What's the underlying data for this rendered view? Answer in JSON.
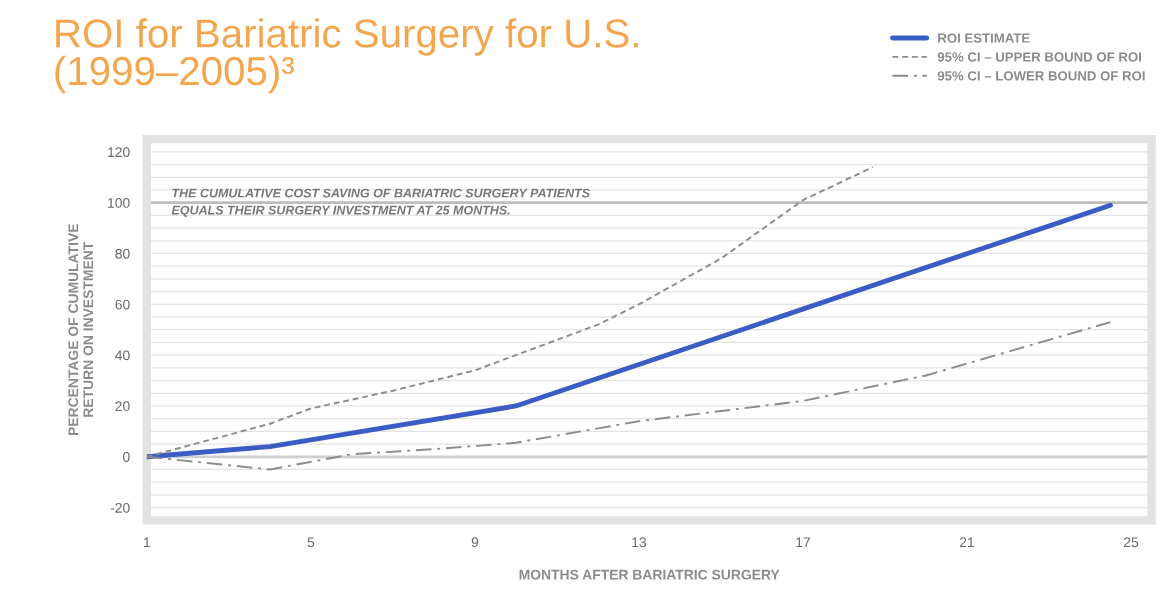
{
  "chart_data": {
    "type": "line",
    "title": "ROI for Bariatric Surgery for U.S.\n(1999–2005)³",
    "xlabel": "MONTHS AFTER BARIATRIC SURGERY",
    "ylabel": "PERCENTAGE OF CUMULATIVE\nRETURN ON INVESTMENT",
    "xlim": [
      1,
      25.5
    ],
    "xticks": [
      1,
      5,
      9,
      13,
      17,
      21,
      25
    ],
    "ylim": [
      -25,
      125
    ],
    "yticks": [
      {
        "value": -20,
        "label": "-20"
      },
      {
        "value": -15,
        "label": null
      },
      {
        "value": -10,
        "label": null
      },
      {
        "value": -5,
        "label": null
      },
      0,
      {
        "value": 5,
        "label": null
      },
      {
        "value": 10,
        "label": null
      },
      {
        "value": 15,
        "label": null
      },
      20,
      {
        "value": 25,
        "label": null
      },
      {
        "value": 30,
        "label": null
      },
      {
        "value": 35,
        "label": null
      },
      40,
      {
        "value": 45,
        "label": null
      },
      {
        "value": 50,
        "label": null
      },
      {
        "value": 55,
        "label": null
      },
      60,
      {
        "value": 65,
        "label": null
      },
      {
        "value": 70,
        "label": null
      },
      {
        "value": 75,
        "label": null
      },
      80,
      {
        "value": 85,
        "label": null
      },
      {
        "value": 90,
        "label": null
      },
      {
        "value": 95,
        "label": null
      },
      100,
      {
        "value": 105,
        "label": null
      },
      {
        "value": 110,
        "label": null
      },
      {
        "value": 115,
        "label": null
      },
      120
    ],
    "grid": "y",
    "legend": "top right",
    "ref_lines": [
      {
        "axis": "y",
        "value": 0,
        "color": "#cfcfcf"
      },
      {
        "axis": "y",
        "value": 100,
        "color": "#bdbdbd",
        "label": "THE CUMULATIVE COST SAVING OF BARIATRIC SURGERY PATIENTS\nEQUALS THEIR SURGERY INVESTMENT AT 25 MONTHS."
      }
    ],
    "series": [
      {
        "name": "ROI ESTIMATE",
        "color": "#3b5cc4",
        "line_style": "solid",
        "x": [
          1,
          4,
          10,
          24.5
        ],
        "values": [
          0,
          4,
          20,
          99
        ]
      },
      {
        "name": "95% CI – UPPER BOUND OF ROI",
        "color": "#8c8c8c",
        "line_style": "dashed",
        "x": [
          1,
          4,
          5,
          7,
          9,
          10,
          12,
          13,
          15,
          17,
          18.7
        ],
        "values": [
          0,
          13,
          19,
          26,
          34,
          40,
          52,
          60,
          78,
          101,
          114
        ]
      },
      {
        "name": "95% CI – LOWER BOUND OF ROI",
        "color": "#8c8c8c",
        "line_style": "dashdot",
        "x": [
          1,
          4,
          6,
          8,
          10,
          13,
          15,
          17,
          20,
          24.5
        ],
        "values": [
          0,
          -5,
          1,
          3,
          5.5,
          14,
          18,
          22,
          32,
          53
        ]
      }
    ]
  }
}
